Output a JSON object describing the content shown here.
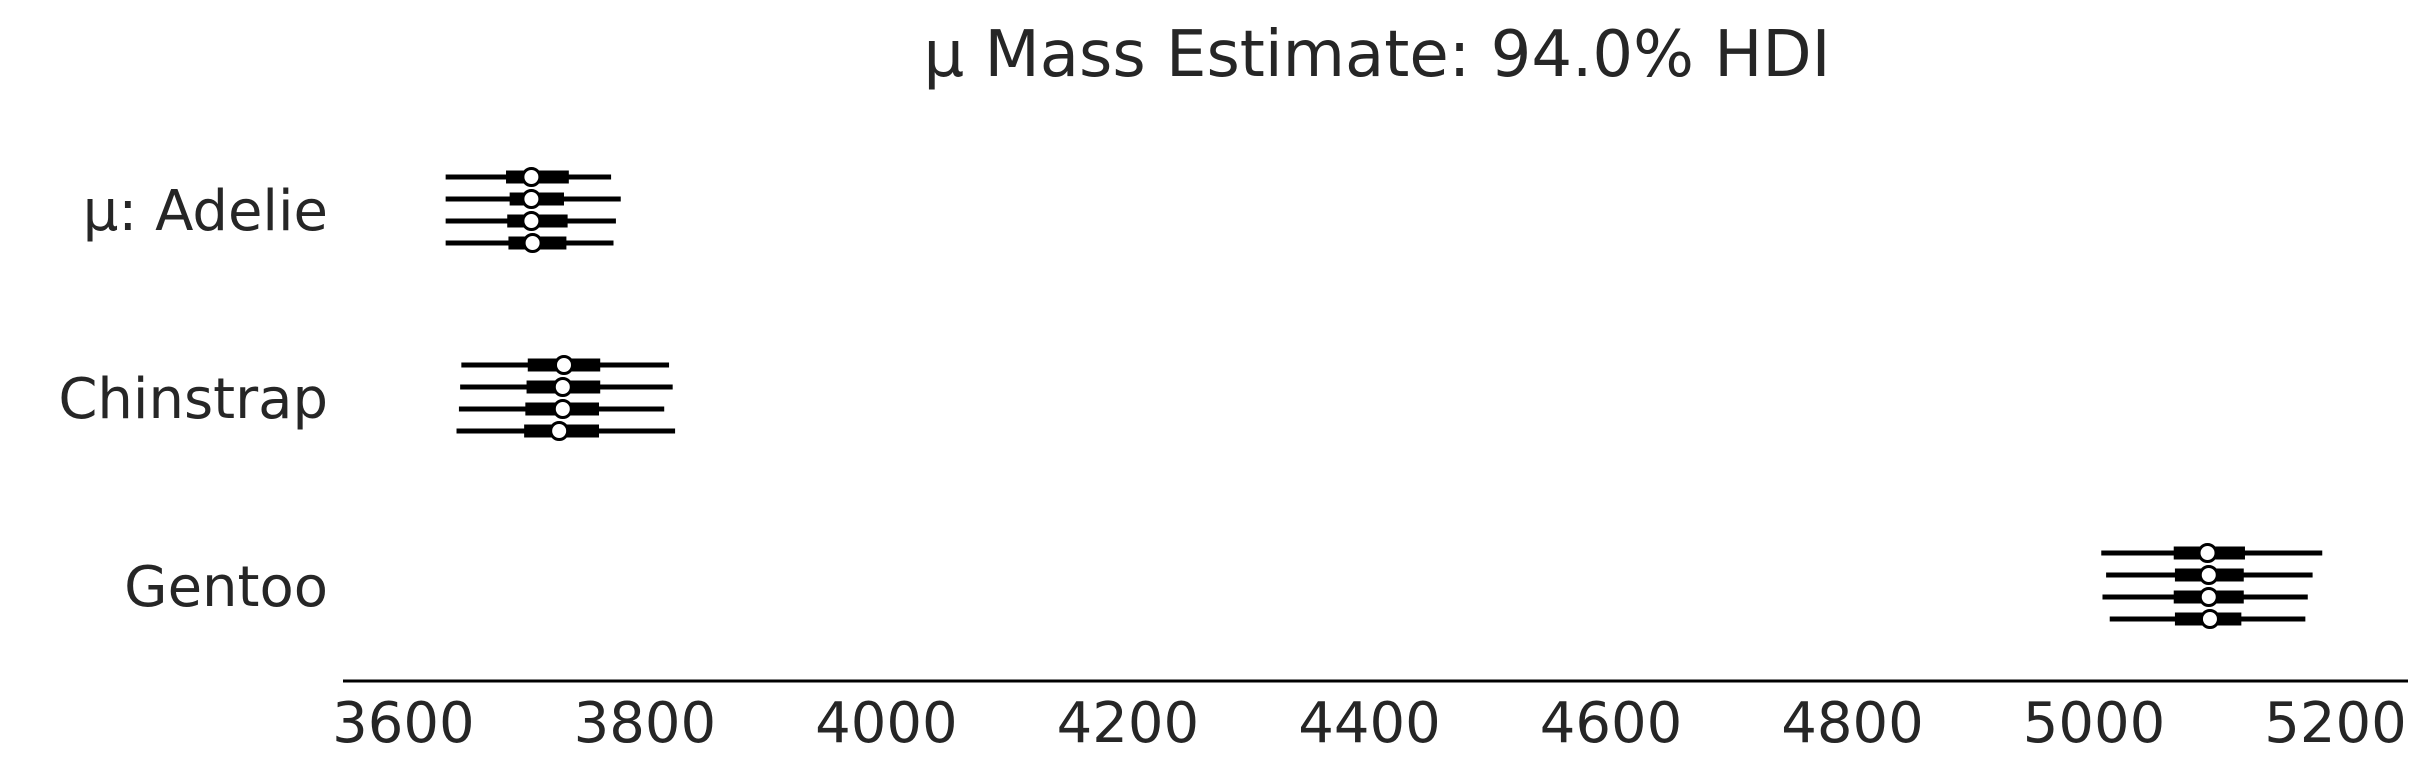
{
  "chart_data": {
    "type": "forest",
    "title": "μ Mass Estimate: 94.0% HDI",
    "xlim": [
      3550,
      5260
    ],
    "xticks": [
      3600,
      3800,
      4000,
      4200,
      4400,
      4600,
      4800,
      5000,
      5200
    ],
    "xtick_labels": [
      "3600",
      "3800",
      "4000",
      "4200",
      "4400",
      "4600",
      "4800",
      "5000",
      "5200"
    ],
    "grid": false,
    "groups": [
      {
        "label": "μ: Adelie",
        "chains": [
          {
            "hdi94": [
              3635,
              3772
            ],
            "iqr": [
              3685,
              3737
            ],
            "median": 3706
          },
          {
            "hdi94": [
              3635,
              3780
            ],
            "iqr": [
              3688,
              3733
            ],
            "median": 3706
          },
          {
            "hdi94": [
              3635,
              3776
            ],
            "iqr": [
              3686,
              3736
            ],
            "median": 3706
          },
          {
            "hdi94": [
              3635,
              3774
            ],
            "iqr": [
              3687,
              3735
            ],
            "median": 3707
          }
        ]
      },
      {
        "label": "Chinstrap",
        "chains": [
          {
            "hdi94": [
              3648,
              3820
            ],
            "iqr": [
              3703,
              3763
            ],
            "median": 3733
          },
          {
            "hdi94": [
              3647,
              3823
            ],
            "iqr": [
              3702,
              3763
            ],
            "median": 3732
          },
          {
            "hdi94": [
              3646,
              3816
            ],
            "iqr": [
              3701,
              3762
            ],
            "median": 3732
          },
          {
            "hdi94": [
              3644,
              3825
            ],
            "iqr": [
              3700,
              3762
            ],
            "median": 3729
          }
        ]
      },
      {
        "label": "Gentoo",
        "chains": [
          {
            "hdi94": [
              5006,
              5189
            ],
            "iqr": [
              5066,
              5125
            ],
            "median": 5094
          },
          {
            "hdi94": [
              5010,
              5181
            ],
            "iqr": [
              5067,
              5124
            ],
            "median": 5095
          },
          {
            "hdi94": [
              5007,
              5177
            ],
            "iqr": [
              5066,
              5124
            ],
            "median": 5095
          },
          {
            "hdi94": [
              5013,
              5175
            ],
            "iqr": [
              5067,
              5122
            ],
            "median": 5096
          }
        ]
      }
    ]
  }
}
